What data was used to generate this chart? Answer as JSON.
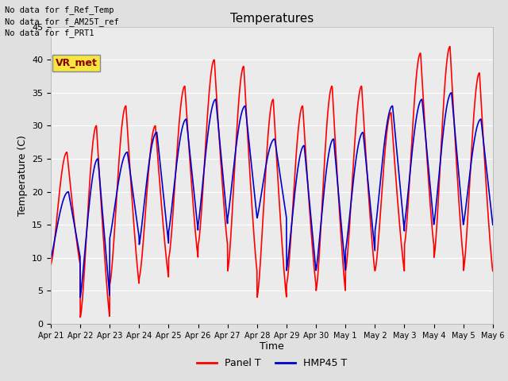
{
  "title": "Temperatures",
  "xlabel": "Time",
  "ylabel": "Temperature (C)",
  "ylim": [
    0,
    45
  ],
  "yticks": [
    0,
    5,
    10,
    15,
    20,
    25,
    30,
    35,
    40,
    45
  ],
  "bg_color": "#e0e0e0",
  "plot_bg_color": "#ebebeb",
  "annotations": [
    "No data for f_Ref_Temp",
    "No data for f_AM25T_ref",
    "No data for f_PRT1"
  ],
  "legend_box_label": "VR_met",
  "panel_color": "#ff0000",
  "hmp45_color": "#0000cc",
  "line_width": 1.2,
  "x_tick_labels": [
    "Apr 21",
    "Apr 22",
    "Apr 23",
    "Apr 24",
    "Apr 25",
    "Apr 26",
    "Apr 27",
    "Apr 28",
    "Apr 29",
    "Apr 30",
    "May 1",
    "May 2",
    "May 3",
    "May 4",
    "May 5",
    "May 6"
  ],
  "num_days": 15,
  "panel_day_mins": [
    9,
    1,
    6,
    7,
    10,
    12,
    8,
    4,
    6,
    5,
    8,
    8,
    12,
    10,
    8
  ],
  "panel_day_maxs": [
    26,
    30,
    33,
    30,
    36,
    40,
    39,
    34,
    33,
    36,
    36,
    32,
    41,
    42,
    38
  ],
  "hmp45_day_mins": [
    10,
    4,
    13,
    12,
    14,
    15,
    16,
    16,
    8,
    8,
    11,
    14,
    15,
    15,
    15
  ],
  "hmp45_day_maxs": [
    20,
    25,
    26,
    29,
    31,
    34,
    33,
    28,
    27,
    28,
    29,
    33,
    34,
    35,
    31
  ]
}
